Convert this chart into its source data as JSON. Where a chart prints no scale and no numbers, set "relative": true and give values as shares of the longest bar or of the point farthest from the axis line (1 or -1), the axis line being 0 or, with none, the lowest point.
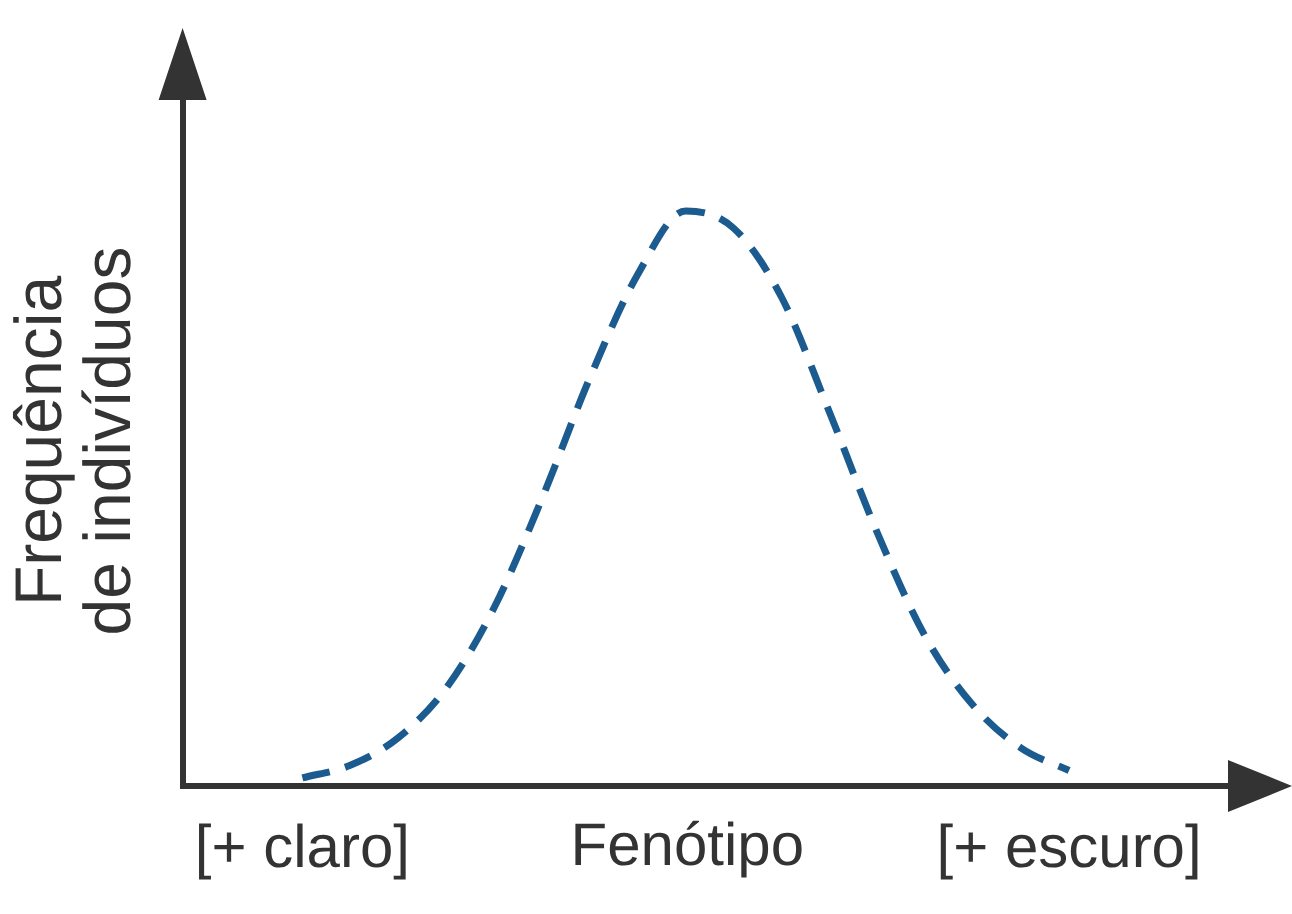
{
  "chart_data": {
    "type": "line",
    "xlabel": "Fenótipo",
    "ylabel": "Frequência de indivíduos",
    "categories": [
      "[+ claro]",
      null,
      null,
      null,
      null,
      null,
      null,
      null,
      null,
      null,
      null,
      null,
      null,
      null,
      null,
      null,
      "[+ escuro]"
    ],
    "relative": true,
    "series": [
      {
        "color": "#1b5b8f",
        "values": [
          0.014,
          0.036,
          0.084,
          0.17,
          0.31,
          0.5,
          0.71,
          0.89,
          1,
          0.97,
          0.85,
          0.65,
          0.44,
          0.26,
          0.14,
          0.066,
          0.027
        ]
      }
    ],
    "line_style": "dashed",
    "marker": "none",
    "grid": false,
    "legend": false
  }
}
